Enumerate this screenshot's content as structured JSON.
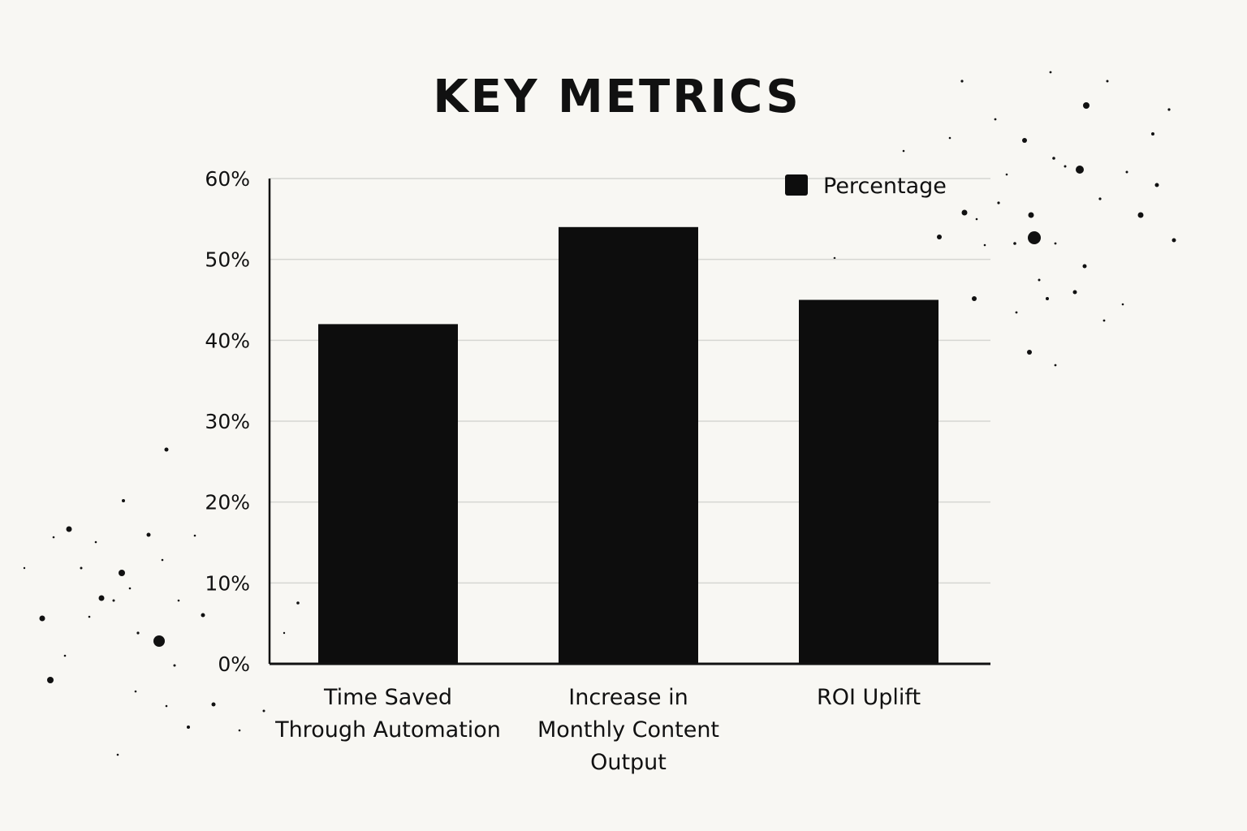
{
  "chart_data": {
    "type": "bar",
    "title": "KEY METRICS",
    "categories": [
      [
        "Time Saved",
        "Through Automation"
      ],
      [
        "Increase in",
        "Monthly Content",
        "Output"
      ],
      [
        "ROI Uplift"
      ]
    ],
    "series": [
      {
        "name": "Percentage",
        "values": [
          42,
          54,
          45
        ],
        "color": "#0d0d0d"
      }
    ],
    "yticks": [
      "0%",
      "10%",
      "20%",
      "30%",
      "40%",
      "50%",
      "60%"
    ],
    "ylim": [
      0,
      60
    ],
    "ylabel": "",
    "xlabel": "",
    "grid": true,
    "legend": "top-right",
    "colors": {
      "background": "#f8f7f3",
      "bar": "#0d0d0d",
      "grid": "#d6d6d2",
      "axis": "#111111"
    }
  }
}
